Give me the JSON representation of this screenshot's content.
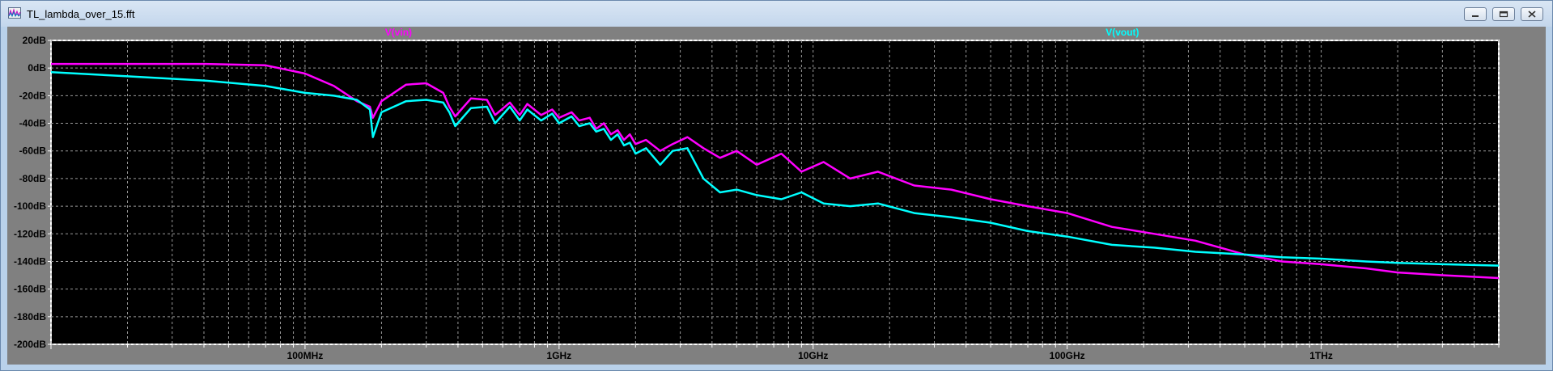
{
  "window": {
    "title": "TL_lambda_over_15.fft",
    "icon": "waveform-icon",
    "buttons": [
      "minimize-icon",
      "restore-icon",
      "close-icon"
    ]
  },
  "chart_data": {
    "type": "line",
    "x_scale": "log",
    "y_scale": "linear",
    "xlim_hz": [
      10000000,
      5000000000000
    ],
    "ylim_db": [
      -200,
      20
    ],
    "grid": true,
    "background": "#000000",
    "y_ticks": [
      20,
      0,
      -20,
      -40,
      -60,
      -80,
      -100,
      -120,
      -140,
      -160,
      -180,
      -200
    ],
    "y_tick_labels": [
      "20dB",
      "0dB",
      "-20dB",
      "-40dB",
      "-60dB",
      "-80dB",
      "-100dB",
      "-120dB",
      "-140dB",
      "-160dB",
      "-180dB",
      "-200dB"
    ],
    "x_major_ticks_hz": [
      100000000,
      1000000000,
      10000000000,
      100000000000,
      1000000000000
    ],
    "x_major_tick_labels": [
      "100MHz",
      "1GHz",
      "10GHz",
      "100GHz",
      "1THz"
    ],
    "series": [
      {
        "name": "V(vin)",
        "color": "#ff00ff",
        "x_hz": [
          10000000.0,
          20000000.0,
          40000000.0,
          70000000.0,
          100000000.0,
          130000000.0,
          160000000.0,
          180000000.0,
          185000000.0,
          200000000.0,
          250000000.0,
          300000000.0,
          350000000.0,
          370000000.0,
          390000000.0,
          450000000.0,
          520000000.0,
          560000000.0,
          640000000.0,
          700000000.0,
          750000000.0,
          850000000.0,
          940000000.0,
          1000000000.0,
          1120000000.0,
          1200000000.0,
          1320000000.0,
          1400000000.0,
          1500000000.0,
          1600000000.0,
          1700000000.0,
          1800000000.0,
          1900000000.0,
          2000000000.0,
          2200000000.0,
          2500000000.0,
          2800000000.0,
          3200000000.0,
          3700000000.0,
          4300000000.0,
          5000000000.0,
          6000000000.0,
          7500000000.0,
          9000000000.0,
          11000000000.0,
          14000000000.0,
          18000000000.0,
          25000000000.0,
          35000000000.0,
          50000000000.0,
          70000000000.0,
          100000000000.0,
          150000000000.0,
          220000000000.0,
          320000000000.0,
          500000000000.0,
          700000000000.0,
          1000000000000.0,
          1500000000000.0,
          2000000000000.0,
          3000000000000.0,
          5000000000000.0
        ],
        "y_db": [
          3,
          3,
          3,
          2,
          -4,
          -13,
          -24,
          -28,
          -36,
          -24,
          -12,
          -11,
          -18,
          -28,
          -35,
          -22,
          -23,
          -34,
          -25,
          -34,
          -26,
          -34,
          -30,
          -36,
          -32,
          -38,
          -36,
          -44,
          -40,
          -48,
          -45,
          -52,
          -48,
          -55,
          -52,
          -60,
          -55,
          -50,
          -58,
          -65,
          -60,
          -70,
          -62,
          -75,
          -68,
          -80,
          -75,
          -85,
          -88,
          -95,
          -100,
          -105,
          -115,
          -120,
          -125,
          -135,
          -140,
          -142,
          -145,
          -148,
          -150,
          -152
        ]
      },
      {
        "name": "V(vout)",
        "color": "#00ffff",
        "x_hz": [
          10000000.0,
          20000000.0,
          40000000.0,
          70000000.0,
          100000000.0,
          130000000.0,
          160000000.0,
          180000000.0,
          185000000.0,
          200000000.0,
          250000000.0,
          300000000.0,
          350000000.0,
          370000000.0,
          390000000.0,
          450000000.0,
          520000000.0,
          560000000.0,
          640000000.0,
          700000000.0,
          750000000.0,
          850000000.0,
          940000000.0,
          1000000000.0,
          1120000000.0,
          1200000000.0,
          1320000000.0,
          1400000000.0,
          1500000000.0,
          1600000000.0,
          1700000000.0,
          1800000000.0,
          1900000000.0,
          2000000000.0,
          2200000000.0,
          2500000000.0,
          2800000000.0,
          3200000000.0,
          3700000000.0,
          4300000000.0,
          5000000000.0,
          6000000000.0,
          7500000000.0,
          9000000000.0,
          11000000000.0,
          14000000000.0,
          18000000000.0,
          25000000000.0,
          35000000000.0,
          50000000000.0,
          70000000000.0,
          100000000000.0,
          150000000000.0,
          220000000000.0,
          320000000000.0,
          500000000000.0,
          700000000000.0,
          1000000000000.0,
          1500000000000.0,
          2000000000000.0,
          3000000000000.0,
          5000000000000.0
        ],
        "y_db": [
          -3,
          -6,
          -9,
          -13,
          -18,
          -20,
          -23,
          -30,
          -50,
          -32,
          -24,
          -23,
          -25,
          -32,
          -42,
          -29,
          -28,
          -40,
          -28,
          -38,
          -30,
          -38,
          -33,
          -40,
          -35,
          -42,
          -40,
          -46,
          -44,
          -52,
          -48,
          -56,
          -54,
          -62,
          -58,
          -70,
          -60,
          -58,
          -80,
          -90,
          -88,
          -92,
          -95,
          -90,
          -98,
          -100,
          -98,
          -105,
          -108,
          -112,
          -118,
          -122,
          -128,
          -130,
          -133,
          -135,
          -137,
          -138,
          -140,
          -141,
          -142,
          -143
        ]
      }
    ]
  }
}
